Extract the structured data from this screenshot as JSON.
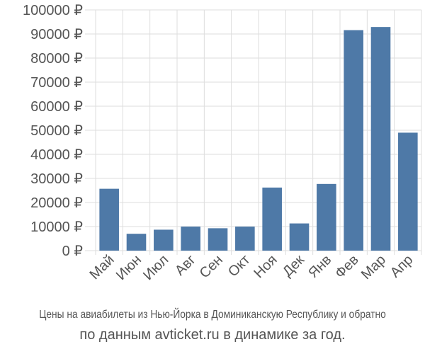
{
  "chart_data": {
    "type": "bar",
    "categories": [
      "Май",
      "Июн",
      "Июл",
      "Авг",
      "Сен",
      "Окт",
      "Ноя",
      "Дек",
      "Янв",
      "Фев",
      "Мар",
      "Апр"
    ],
    "values": [
      25700,
      7000,
      8700,
      10000,
      9300,
      10000,
      26200,
      11300,
      27700,
      91600,
      92900,
      49000
    ],
    "ylim": [
      0,
      100000
    ],
    "yticks": [
      0,
      10000,
      20000,
      30000,
      40000,
      50000,
      60000,
      70000,
      80000,
      90000,
      100000
    ],
    "ytick_labels": [
      "0 ₽",
      "10000 ₽",
      "20000 ₽",
      "30000 ₽",
      "40000 ₽",
      "50000 ₽",
      "60000 ₽",
      "70000 ₽",
      "80000 ₽",
      "90000 ₽",
      "100000 ₽"
    ],
    "grid": true,
    "bar_color": "#4e79a7",
    "grid_color": "#dddddd",
    "text_color": "#555555"
  },
  "caption": {
    "line1": "Цены на авиабилеты из Нью-Йорка в Доминиканскую Республику и обратно",
    "line2": "по данным avticket.ru в динамике за год."
  }
}
